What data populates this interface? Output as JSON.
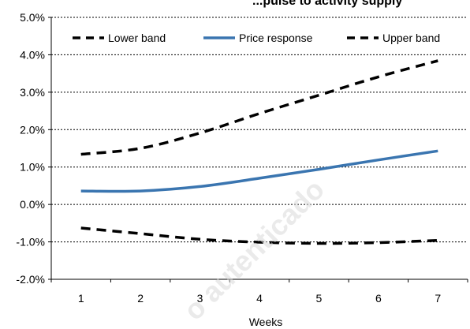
{
  "chart_data": {
    "type": "line",
    "title": "...pulse to activity supply",
    "xlabel": "Weeks",
    "ylabel": "",
    "x": [
      1,
      2,
      3,
      4,
      5,
      6,
      7
    ],
    "x_tick_labels": [
      "1",
      "2",
      "3",
      "4",
      "5",
      "6",
      "7"
    ],
    "ylim": [
      -0.02,
      0.05
    ],
    "y_ticks": [
      -0.02,
      -0.01,
      0.0,
      0.01,
      0.02,
      0.03,
      0.04,
      0.05
    ],
    "y_tick_labels": [
      "-2.0%",
      "-1.0%",
      "0.0%",
      "1.0%",
      "2.0%",
      "3.0%",
      "4.0%",
      "5.0%"
    ],
    "grid": "horizontal dotted",
    "legend_position": "top",
    "series": [
      {
        "name": "Lower band",
        "style": "dashed",
        "color": "#000000",
        "values": [
          -0.0063,
          -0.0078,
          -0.0093,
          -0.0101,
          -0.0104,
          -0.0102,
          -0.0096
        ]
      },
      {
        "name": "Price response",
        "style": "solid",
        "color": "#3a75b0",
        "values": [
          0.0036,
          0.0036,
          0.0048,
          0.007,
          0.0094,
          0.0119,
          0.0143
        ]
      },
      {
        "name": "Upper band",
        "style": "dashed",
        "color": "#000000",
        "values": [
          0.0134,
          0.015,
          0.0191,
          0.0243,
          0.0292,
          0.0341,
          0.0384
        ]
      }
    ]
  },
  "watermark": "o autenticado"
}
